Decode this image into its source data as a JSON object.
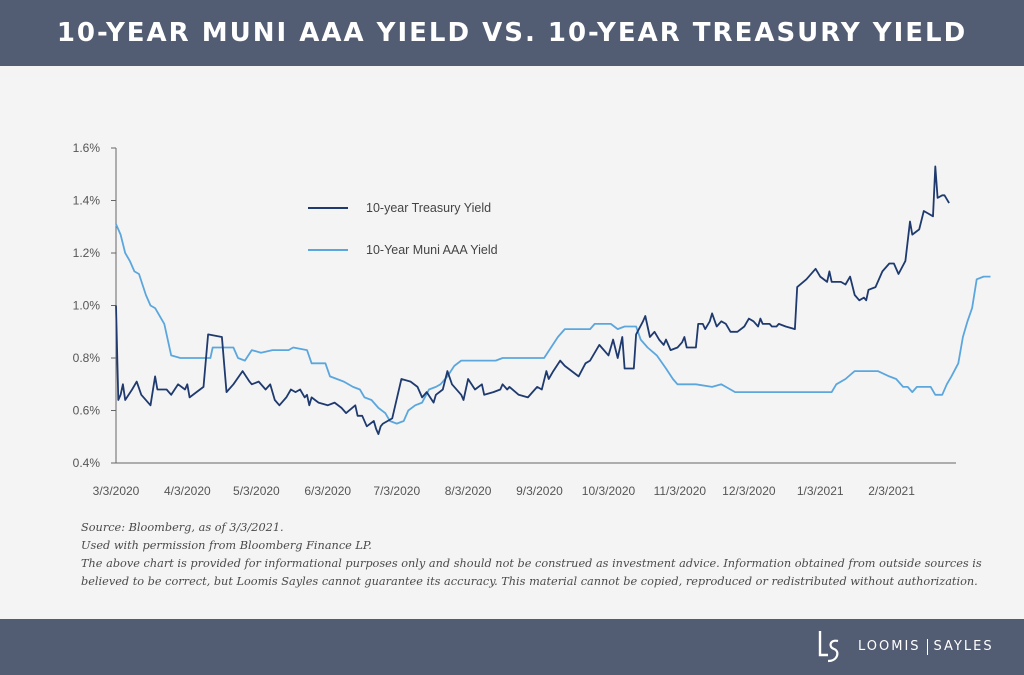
{
  "header": {
    "title": "10-YEAR MUNI AAA YIELD VS. 10-YEAR TREASURY YIELD"
  },
  "chart_data": {
    "type": "line",
    "title": "10-YEAR MUNI AAA YIELD VS. 10-YEAR TREASURY YIELD",
    "xlabel": "",
    "ylabel": "",
    "x_range": [
      "2020-03-03",
      "2021-03-03"
    ],
    "x_ticks": [
      "3/3/2020",
      "4/3/2020",
      "5/3/2020",
      "6/3/2020",
      "7/3/2020",
      "8/3/2020",
      "9/3/2020",
      "10/3/2020",
      "11/3/2020",
      "12/3/2020",
      "1/3/2021",
      "2/3/2021"
    ],
    "y_ticks": [
      "0.4%",
      "0.6%",
      "0.8%",
      "1.0%",
      "1.2%",
      "1.4%",
      "1.6%"
    ],
    "ylim": [
      0.4,
      1.6
    ],
    "grid": false,
    "legend_position": "top-left",
    "series": [
      {
        "name": "10-year Treasury Yield",
        "color": "#1f3a6e",
        "points": [
          [
            "2020-03-03",
            1.0
          ],
          [
            "2020-03-04",
            0.64
          ],
          [
            "2020-03-05",
            0.66
          ],
          [
            "2020-03-06",
            0.7
          ],
          [
            "2020-03-07",
            0.64
          ],
          [
            "2020-03-10",
            0.68
          ],
          [
            "2020-03-12",
            0.71
          ],
          [
            "2020-03-14",
            0.66
          ],
          [
            "2020-03-18",
            0.62
          ],
          [
            "2020-03-20",
            0.73
          ],
          [
            "2020-03-21",
            0.68
          ],
          [
            "2020-03-25",
            0.68
          ],
          [
            "2020-03-27",
            0.66
          ],
          [
            "2020-03-30",
            0.7
          ],
          [
            "2020-04-02",
            0.68
          ],
          [
            "2020-04-03",
            0.7
          ],
          [
            "2020-04-04",
            0.65
          ],
          [
            "2020-04-07",
            0.67
          ],
          [
            "2020-04-10",
            0.69
          ],
          [
            "2020-04-12",
            0.89
          ],
          [
            "2020-04-18",
            0.88
          ],
          [
            "2020-04-20",
            0.67
          ],
          [
            "2020-04-23",
            0.7
          ],
          [
            "2020-04-27",
            0.75
          ],
          [
            "2020-04-30",
            0.71
          ],
          [
            "2020-05-01",
            0.7
          ],
          [
            "2020-05-04",
            0.71
          ],
          [
            "2020-05-07",
            0.68
          ],
          [
            "2020-05-09",
            0.7
          ],
          [
            "2020-05-11",
            0.64
          ],
          [
            "2020-05-13",
            0.62
          ],
          [
            "2020-05-16",
            0.65
          ],
          [
            "2020-05-18",
            0.68
          ],
          [
            "2020-05-20",
            0.67
          ],
          [
            "2020-05-22",
            0.68
          ],
          [
            "2020-05-24",
            0.65
          ],
          [
            "2020-05-25",
            0.66
          ],
          [
            "2020-05-26",
            0.62
          ],
          [
            "2020-05-27",
            0.65
          ],
          [
            "2020-05-30",
            0.63
          ],
          [
            "2020-06-03",
            0.62
          ],
          [
            "2020-06-06",
            0.63
          ],
          [
            "2020-06-09",
            0.61
          ],
          [
            "2020-06-11",
            0.59
          ],
          [
            "2020-06-15",
            0.62
          ],
          [
            "2020-06-16",
            0.58
          ],
          [
            "2020-06-18",
            0.58
          ],
          [
            "2020-06-20",
            0.54
          ],
          [
            "2020-06-23",
            0.56
          ],
          [
            "2020-06-24",
            0.53
          ],
          [
            "2020-06-25",
            0.51
          ],
          [
            "2020-06-26",
            0.54
          ],
          [
            "2020-06-27",
            0.55
          ],
          [
            "2020-07-01",
            0.57
          ],
          [
            "2020-07-05",
            0.72
          ],
          [
            "2020-07-09",
            0.71
          ],
          [
            "2020-07-12",
            0.69
          ],
          [
            "2020-07-14",
            0.65
          ],
          [
            "2020-07-16",
            0.67
          ],
          [
            "2020-07-19",
            0.63
          ],
          [
            "2020-07-20",
            0.66
          ],
          [
            "2020-07-23",
            0.68
          ],
          [
            "2020-07-25",
            0.75
          ],
          [
            "2020-07-27",
            0.7
          ],
          [
            "2020-07-31",
            0.66
          ],
          [
            "2020-08-01",
            0.64
          ],
          [
            "2020-08-03",
            0.72
          ],
          [
            "2020-08-06",
            0.68
          ],
          [
            "2020-08-09",
            0.7
          ],
          [
            "2020-08-10",
            0.66
          ],
          [
            "2020-08-14",
            0.67
          ],
          [
            "2020-08-17",
            0.68
          ],
          [
            "2020-08-18",
            0.7
          ],
          [
            "2020-08-20",
            0.68
          ],
          [
            "2020-08-21",
            0.69
          ],
          [
            "2020-08-25",
            0.66
          ],
          [
            "2020-08-29",
            0.65
          ],
          [
            "2020-08-31",
            0.67
          ],
          [
            "2020-09-02",
            0.69
          ],
          [
            "2020-09-04",
            0.68
          ],
          [
            "2020-09-06",
            0.75
          ],
          [
            "2020-09-07",
            0.72
          ],
          [
            "2020-09-09",
            0.75
          ],
          [
            "2020-09-12",
            0.79
          ],
          [
            "2020-09-14",
            0.77
          ],
          [
            "2020-09-17",
            0.75
          ],
          [
            "2020-09-20",
            0.73
          ],
          [
            "2020-09-23",
            0.78
          ],
          [
            "2020-09-25",
            0.79
          ],
          [
            "2020-09-29",
            0.85
          ],
          [
            "2020-10-01",
            0.83
          ],
          [
            "2020-10-02",
            0.82
          ],
          [
            "2020-10-03",
            0.81
          ],
          [
            "2020-10-05",
            0.87
          ],
          [
            "2020-10-07",
            0.8
          ],
          [
            "2020-10-09",
            0.88
          ],
          [
            "2020-10-10",
            0.76
          ],
          [
            "2020-10-14",
            0.76
          ],
          [
            "2020-10-15",
            0.89
          ],
          [
            "2020-10-18",
            0.94
          ],
          [
            "2020-10-19",
            0.96
          ],
          [
            "2020-10-21",
            0.88
          ],
          [
            "2020-10-23",
            0.9
          ],
          [
            "2020-10-25",
            0.87
          ],
          [
            "2020-10-27",
            0.85
          ],
          [
            "2020-10-28",
            0.87
          ],
          [
            "2020-10-30",
            0.83
          ],
          [
            "2020-11-02",
            0.84
          ],
          [
            "2020-11-04",
            0.86
          ],
          [
            "2020-11-05",
            0.88
          ],
          [
            "2020-11-06",
            0.84
          ],
          [
            "2020-11-10",
            0.84
          ],
          [
            "2020-11-11",
            0.93
          ],
          [
            "2020-11-13",
            0.93
          ],
          [
            "2020-11-14",
            0.91
          ],
          [
            "2020-11-16",
            0.94
          ],
          [
            "2020-11-17",
            0.97
          ],
          [
            "2020-11-19",
            0.92
          ],
          [
            "2020-11-21",
            0.94
          ],
          [
            "2020-11-23",
            0.93
          ],
          [
            "2020-11-25",
            0.9
          ],
          [
            "2020-11-28",
            0.9
          ],
          [
            "2020-12-01",
            0.92
          ],
          [
            "2020-12-03",
            0.95
          ],
          [
            "2020-12-05",
            0.94
          ],
          [
            "2020-12-07",
            0.92
          ],
          [
            "2020-12-08",
            0.95
          ],
          [
            "2020-12-09",
            0.93
          ],
          [
            "2020-12-12",
            0.93
          ],
          [
            "2020-12-13",
            0.92
          ],
          [
            "2020-12-15",
            0.92
          ],
          [
            "2020-12-16",
            0.93
          ],
          [
            "2020-12-19",
            0.92
          ],
          [
            "2020-12-23",
            0.91
          ],
          [
            "2020-12-24",
            1.07
          ],
          [
            "2020-12-28",
            1.1
          ],
          [
            "2021-01-01",
            1.14
          ],
          [
            "2021-01-03",
            1.11
          ],
          [
            "2021-01-06",
            1.09
          ],
          [
            "2021-01-07",
            1.13
          ],
          [
            "2021-01-08",
            1.09
          ],
          [
            "2021-01-12",
            1.09
          ],
          [
            "2021-01-14",
            1.08
          ],
          [
            "2021-01-16",
            1.11
          ],
          [
            "2021-01-18",
            1.04
          ],
          [
            "2021-01-20",
            1.02
          ],
          [
            "2021-01-22",
            1.03
          ],
          [
            "2021-01-23",
            1.02
          ],
          [
            "2021-01-24",
            1.06
          ],
          [
            "2021-01-27",
            1.07
          ],
          [
            "2021-01-30",
            1.13
          ],
          [
            "2021-02-02",
            1.16
          ],
          [
            "2021-02-04",
            1.16
          ],
          [
            "2021-02-06",
            1.12
          ],
          [
            "2021-02-09",
            1.17
          ],
          [
            "2021-02-11",
            1.32
          ],
          [
            "2021-02-12",
            1.27
          ],
          [
            "2021-02-15",
            1.29
          ],
          [
            "2021-02-17",
            1.36
          ],
          [
            "2021-02-19",
            1.35
          ],
          [
            "2021-02-21",
            1.34
          ],
          [
            "2021-02-22",
            1.53
          ],
          [
            "2021-02-23",
            1.41
          ],
          [
            "2021-02-25",
            1.42
          ],
          [
            "2021-02-26",
            1.42
          ],
          [
            "2021-02-28",
            1.39
          ]
        ]
      },
      {
        "name": "10-Year Muni AAA Yield",
        "color": "#5ba7dd",
        "points": [
          [
            "2020-03-03",
            1.31
          ],
          [
            "2020-03-05",
            1.27
          ],
          [
            "2020-03-07",
            1.2
          ],
          [
            "2020-03-09",
            1.17
          ],
          [
            "2020-03-11",
            1.13
          ],
          [
            "2020-03-13",
            1.12
          ],
          [
            "2020-03-16",
            1.04
          ],
          [
            "2020-03-18",
            1.0
          ],
          [
            "2020-03-20",
            0.99
          ],
          [
            "2020-03-24",
            0.93
          ],
          [
            "2020-03-27",
            0.81
          ],
          [
            "2020-03-31",
            0.8
          ],
          [
            "2020-04-13",
            0.8
          ],
          [
            "2020-04-14",
            0.84
          ],
          [
            "2020-04-23",
            0.84
          ],
          [
            "2020-04-25",
            0.8
          ],
          [
            "2020-04-28",
            0.79
          ],
          [
            "2020-05-01",
            0.83
          ],
          [
            "2020-05-05",
            0.82
          ],
          [
            "2020-05-10",
            0.83
          ],
          [
            "2020-05-17",
            0.83
          ],
          [
            "2020-05-19",
            0.84
          ],
          [
            "2020-05-25",
            0.83
          ],
          [
            "2020-05-27",
            0.78
          ],
          [
            "2020-06-02",
            0.78
          ],
          [
            "2020-06-04",
            0.73
          ],
          [
            "2020-06-07",
            0.72
          ],
          [
            "2020-06-10",
            0.71
          ],
          [
            "2020-06-14",
            0.69
          ],
          [
            "2020-06-17",
            0.68
          ],
          [
            "2020-06-19",
            0.65
          ],
          [
            "2020-06-22",
            0.64
          ],
          [
            "2020-06-25",
            0.61
          ],
          [
            "2020-06-28",
            0.59
          ],
          [
            "2020-06-30",
            0.56
          ],
          [
            "2020-07-03",
            0.55
          ],
          [
            "2020-07-06",
            0.56
          ],
          [
            "2020-07-08",
            0.6
          ],
          [
            "2020-07-11",
            0.62
          ],
          [
            "2020-07-14",
            0.63
          ],
          [
            "2020-07-17",
            0.68
          ],
          [
            "2020-07-20",
            0.69
          ],
          [
            "2020-07-22",
            0.7
          ],
          [
            "2020-07-25",
            0.73
          ],
          [
            "2020-07-28",
            0.77
          ],
          [
            "2020-07-31",
            0.79
          ],
          [
            "2020-08-15",
            0.79
          ],
          [
            "2020-08-18",
            0.8
          ],
          [
            "2020-09-05",
            0.8
          ],
          [
            "2020-09-08",
            0.84
          ],
          [
            "2020-09-11",
            0.88
          ],
          [
            "2020-09-14",
            0.91
          ],
          [
            "2020-09-17",
            0.91
          ],
          [
            "2020-09-25",
            0.91
          ],
          [
            "2020-09-27",
            0.93
          ],
          [
            "2020-10-04",
            0.93
          ],
          [
            "2020-10-07",
            0.91
          ],
          [
            "2020-10-10",
            0.92
          ],
          [
            "2020-10-15",
            0.92
          ],
          [
            "2020-10-17",
            0.87
          ],
          [
            "2020-10-20",
            0.84
          ],
          [
            "2020-10-24",
            0.81
          ],
          [
            "2020-10-28",
            0.76
          ],
          [
            "2020-10-31",
            0.72
          ],
          [
            "2020-11-02",
            0.7
          ],
          [
            "2020-11-10",
            0.7
          ],
          [
            "2020-11-17",
            0.69
          ],
          [
            "2020-11-21",
            0.7
          ],
          [
            "2020-11-23",
            0.69
          ],
          [
            "2020-11-27",
            0.67
          ],
          [
            "2020-12-20",
            0.67
          ],
          [
            "2021-01-08",
            0.67
          ],
          [
            "2021-01-10",
            0.7
          ],
          [
            "2021-01-14",
            0.72
          ],
          [
            "2021-01-18",
            0.75
          ],
          [
            "2021-01-28",
            0.75
          ],
          [
            "2021-02-02",
            0.73
          ],
          [
            "2021-02-05",
            0.72
          ],
          [
            "2021-02-08",
            0.69
          ],
          [
            "2021-02-10",
            0.69
          ],
          [
            "2021-02-12",
            0.67
          ],
          [
            "2021-02-14",
            0.69
          ],
          [
            "2021-02-17",
            0.69
          ],
          [
            "2021-02-20",
            0.69
          ],
          [
            "2021-02-22",
            0.66
          ],
          [
            "2021-02-25",
            0.66
          ],
          [
            "2021-02-27",
            0.7
          ],
          [
            "2021-03-01",
            0.73
          ],
          [
            "2021-03-04",
            0.78
          ],
          [
            "2021-03-06",
            0.88
          ],
          [
            "2021-03-08",
            0.94
          ],
          [
            "2021-03-10",
            0.99
          ],
          [
            "2021-03-12",
            1.1
          ],
          [
            "2021-03-15",
            1.11
          ],
          [
            "2021-03-18",
            1.11
          ]
        ]
      }
    ]
  },
  "notes": {
    "source": "Source: Bloomberg, as of 3/3/2021.",
    "permission": "Used with permission from Bloomberg Finance LP.",
    "disclaimer_1": "The above chart is provided for informational purposes only and should not be construed as investment advice. Information obtained from outside sources is",
    "disclaimer_2": "believed to be correct, but Loomis Sayles cannot guarantee its accuracy. This material cannot be copied, reproduced or redistributed without authorization."
  },
  "footer": {
    "brand_left": "LOOMIS",
    "brand_right": "SAYLES"
  }
}
